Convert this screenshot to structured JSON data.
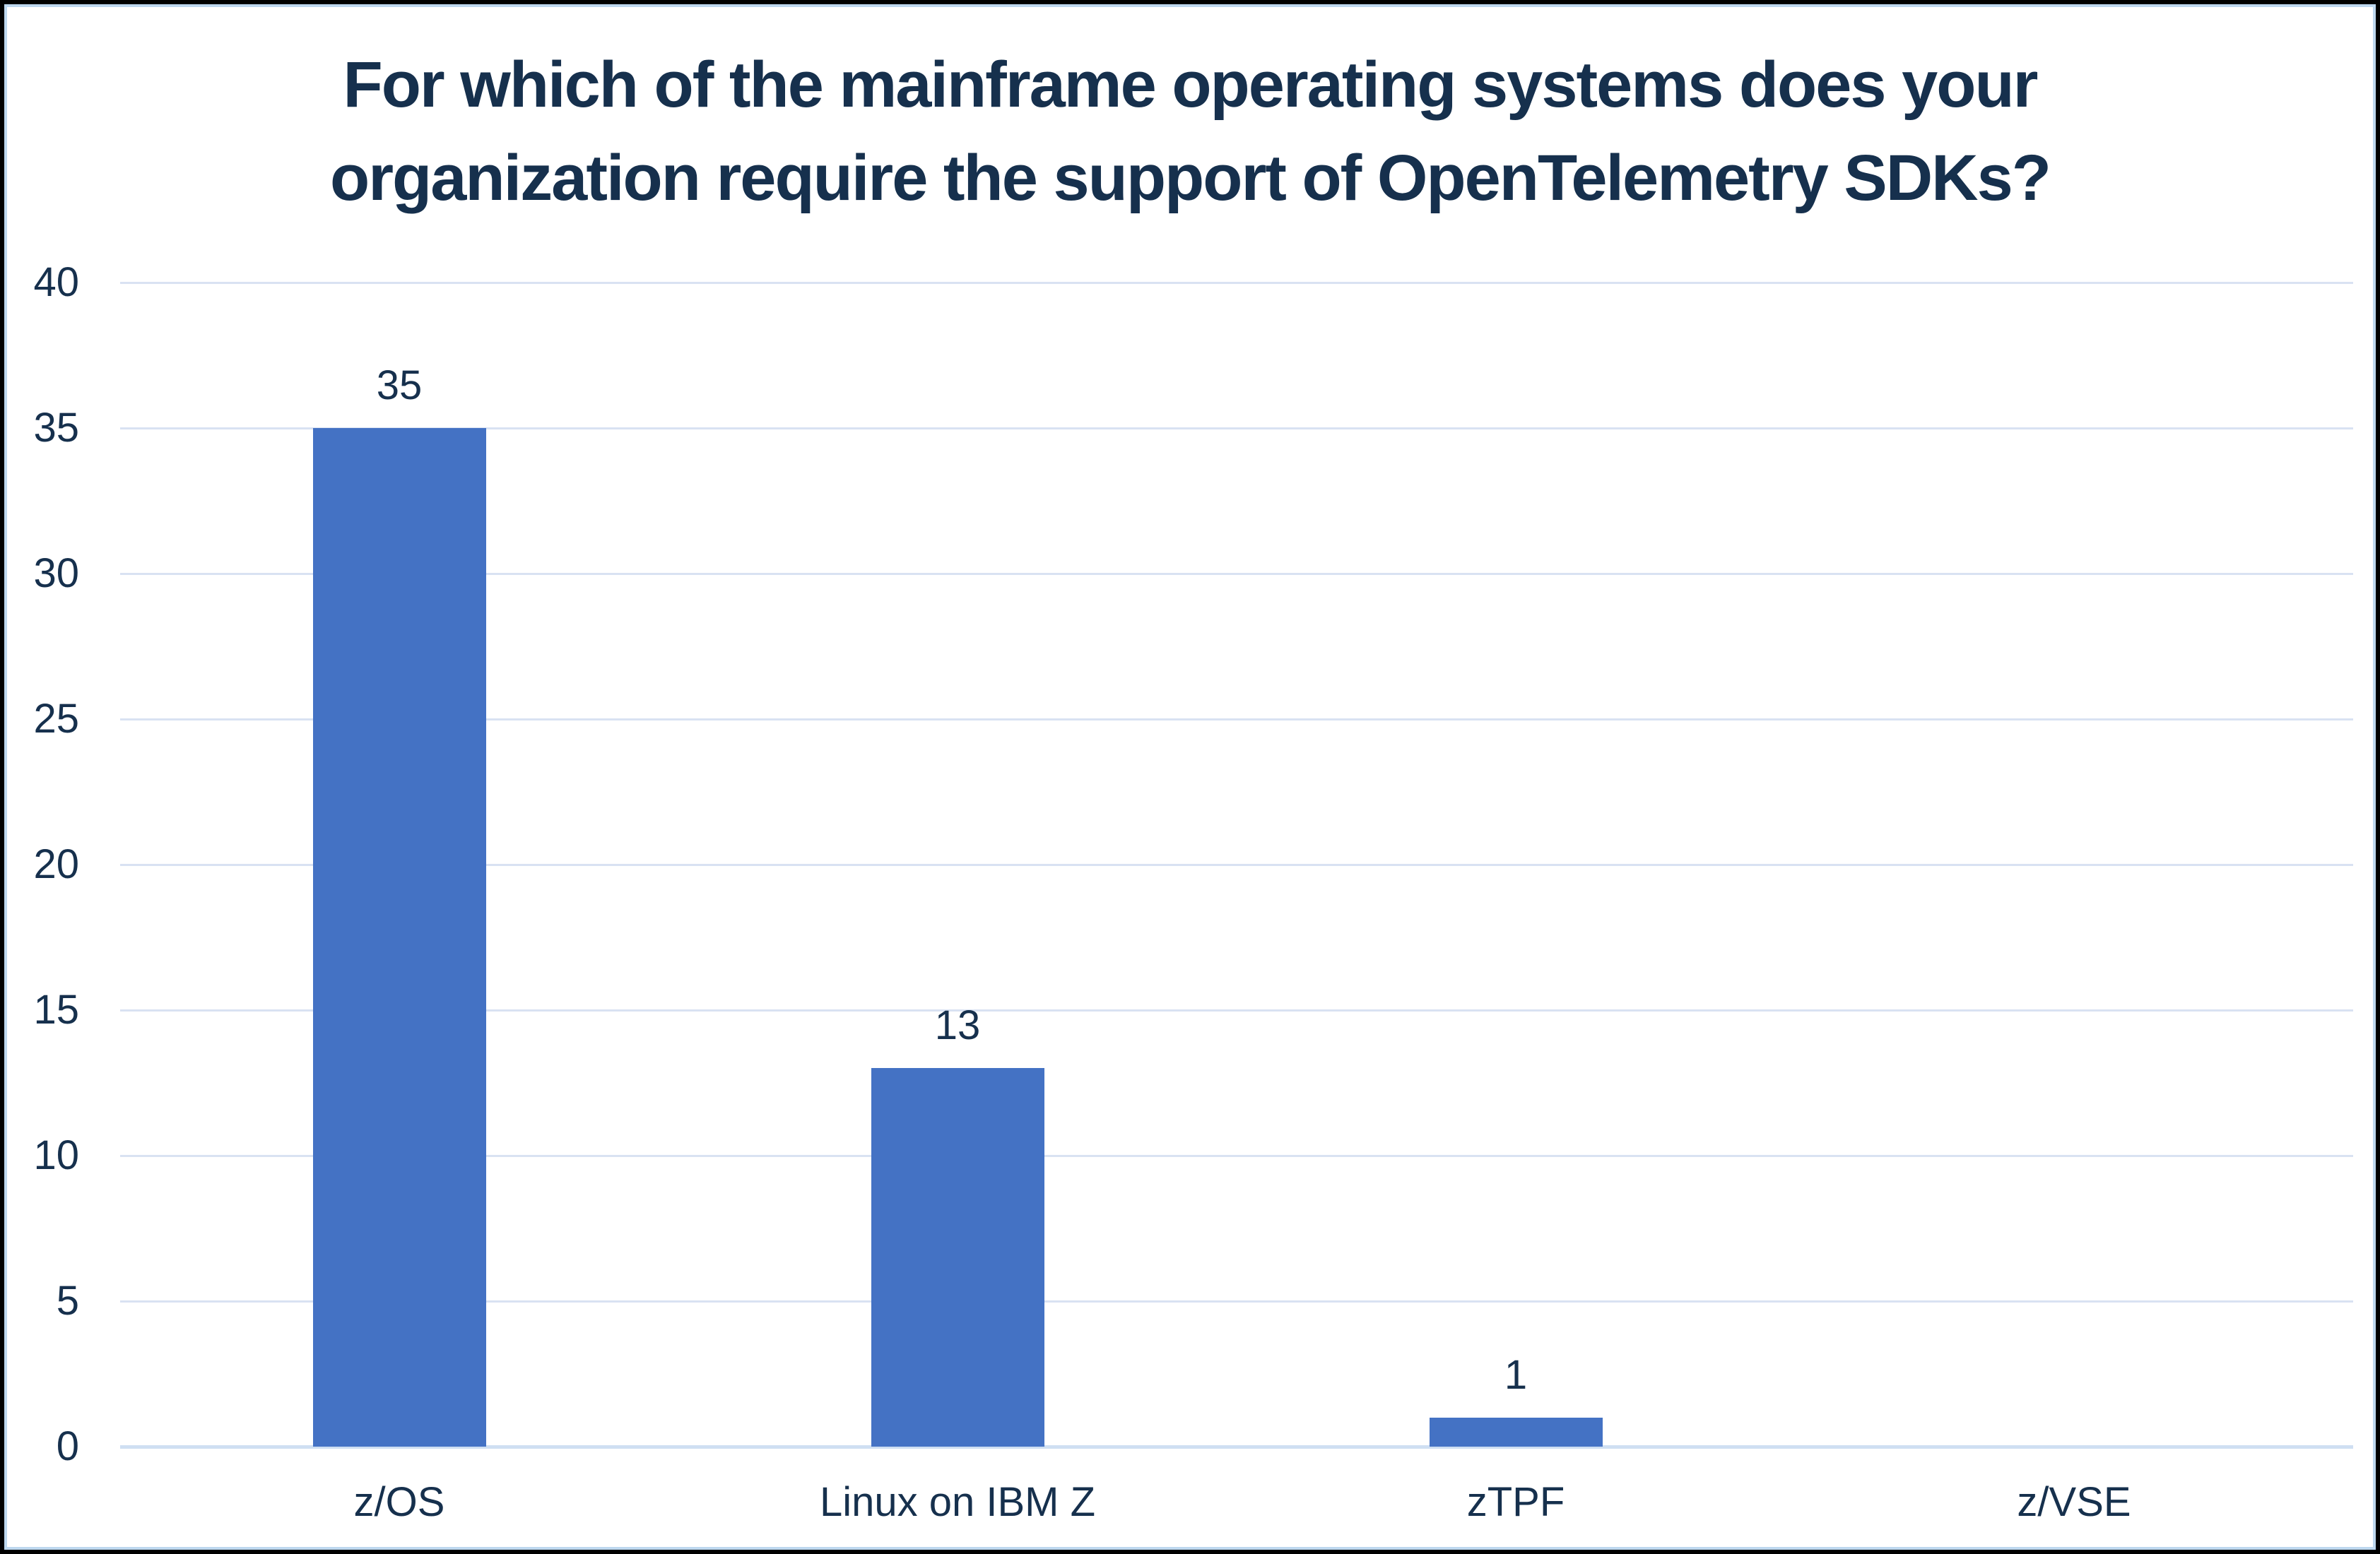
{
  "chart_data": {
    "type": "bar",
    "title": "For which of the mainframe operating systems does your organization require the support of OpenTelemetry SDKs?",
    "title_lines": [
      "For which of the mainframe operating systems does your",
      "organization require the support of OpenTelemetry SDKs?"
    ],
    "categories": [
      "z/OS",
      "Linux on IBM Z",
      "zTPF",
      "z/VSE"
    ],
    "values": [
      35,
      13,
      1,
      0
    ],
    "data_labels": [
      "35",
      "13",
      "1",
      ""
    ],
    "xlabel": "",
    "ylabel": "",
    "ylim": [
      0,
      40
    ],
    "yticks": [
      0,
      5,
      10,
      15,
      20,
      25,
      30,
      35,
      40
    ],
    "grid": "horizontal",
    "legend": "none",
    "colors": {
      "bar": "#4472C4",
      "text": "#16304D",
      "gridline": "#D9E2F2",
      "baseline": "#CFDFF2",
      "chart_border": "#BDD7EE",
      "frame": "#000000",
      "background": "#FFFFFF"
    }
  }
}
